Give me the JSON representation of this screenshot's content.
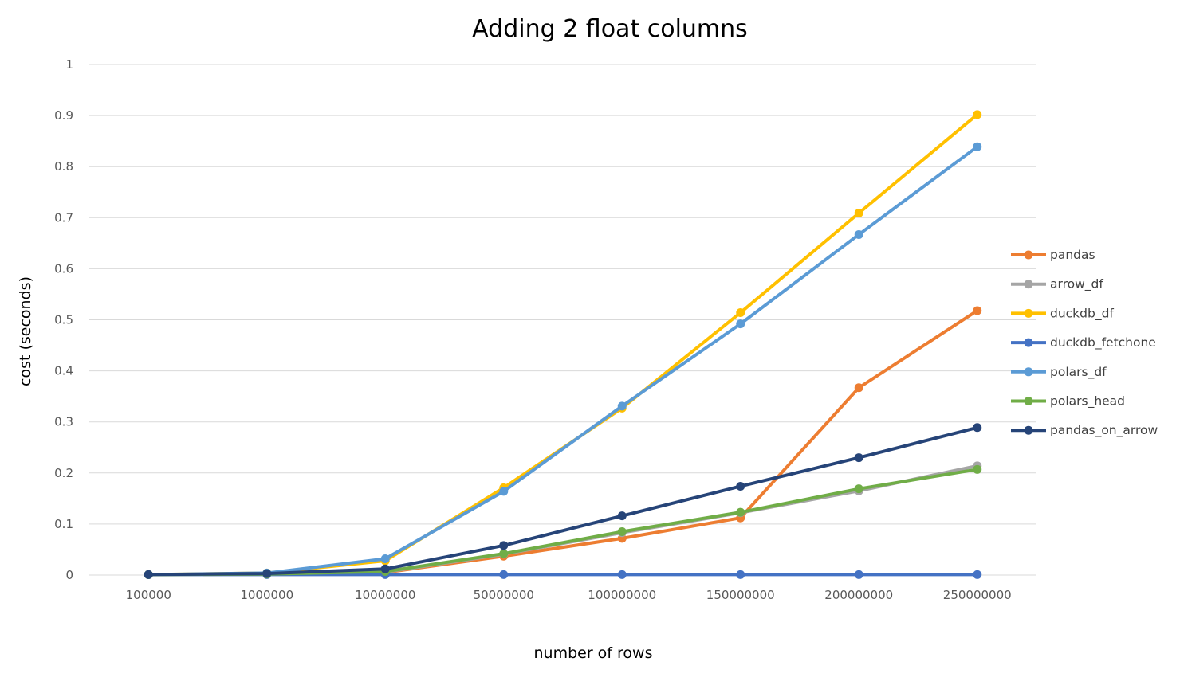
{
  "chart_data": {
    "type": "line",
    "title": "Adding 2 float columns",
    "xlabel": "number of rows",
    "ylabel": "cost (seconds)",
    "categories": [
      "100000",
      "1000000",
      "10000000",
      "50000000",
      "100000000",
      "150000000",
      "200000000",
      "250000000"
    ],
    "ylim": [
      0,
      1
    ],
    "yticks": [
      "0",
      "0.1",
      "0.2",
      "0.3",
      "0.4",
      "0.5",
      "0.6",
      "0.7",
      "0.8",
      "0.9",
      "1"
    ],
    "grid": true,
    "legend_position": "right",
    "series": [
      {
        "name": "pandas",
        "color": "#ED7D31",
        "values": [
          0.001,
          0.002,
          0.005,
          0.037,
          0.072,
          0.112,
          0.367,
          0.518
        ]
      },
      {
        "name": "arrow_df",
        "color": "#A5A5A5",
        "values": [
          0.001,
          0.002,
          0.006,
          0.041,
          0.083,
          0.122,
          0.165,
          0.214
        ]
      },
      {
        "name": "duckdb_df",
        "color": "#FFC000",
        "values": [
          0.001,
          0.004,
          0.028,
          0.171,
          0.327,
          0.514,
          0.709,
          0.902
        ]
      },
      {
        "name": "duckdb_fetchone",
        "color": "#4472C4",
        "values": [
          0.001,
          0.001,
          0.001,
          0.001,
          0.001,
          0.001,
          0.001,
          0.001
        ]
      },
      {
        "name": "polars_df",
        "color": "#5B9BD5",
        "values": [
          0.001,
          0.004,
          0.032,
          0.164,
          0.331,
          0.492,
          0.667,
          0.839
        ]
      },
      {
        "name": "polars_head",
        "color": "#70AD47",
        "values": [
          0.001,
          0.002,
          0.007,
          0.042,
          0.085,
          0.123,
          0.169,
          0.207
        ]
      },
      {
        "name": "pandas_on_arrow",
        "color": "#264478",
        "values": [
          0.001,
          0.003,
          0.012,
          0.058,
          0.116,
          0.174,
          0.23,
          0.289
        ]
      }
    ]
  }
}
